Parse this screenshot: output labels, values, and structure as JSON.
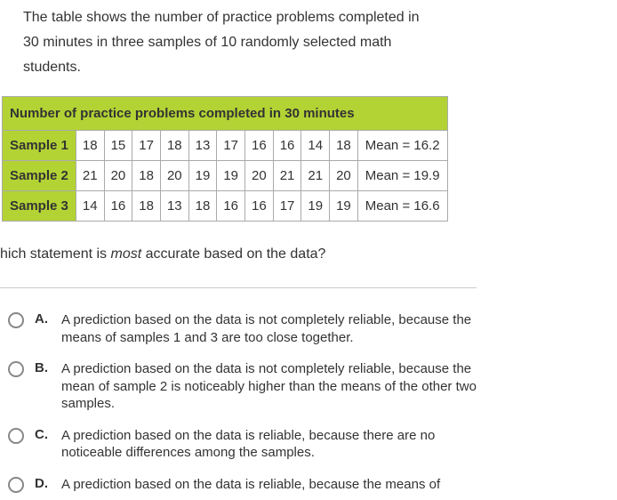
{
  "intro": "The table shows the number of practice problems completed in 30 minutes in three samples of 10 randomly selected math students.",
  "table": {
    "title": "Number of practice problems completed in 30 minutes",
    "title_bg": "#b3d334",
    "label_bg": "#b3d334",
    "border_color": "#aaaaaa",
    "cell_fontsize": 15,
    "rows": [
      {
        "label": "Sample 1",
        "values": [
          18,
          15,
          17,
          18,
          13,
          17,
          16,
          16,
          14,
          18
        ],
        "mean": "Mean = 16.2"
      },
      {
        "label": "Sample 2",
        "values": [
          21,
          20,
          18,
          20,
          19,
          19,
          20,
          21,
          21,
          20
        ],
        "mean": "Mean = 19.9"
      },
      {
        "label": "Sample 3",
        "values": [
          14,
          16,
          18,
          13,
          18,
          16,
          16,
          17,
          19,
          19
        ],
        "mean": "Mean = 16.6"
      }
    ]
  },
  "question_prefix": "hich statement is ",
  "question_emph": "most",
  "question_suffix": " accurate based on the data?",
  "choices": [
    {
      "label": "A.",
      "text": "A prediction based on the data is not completely reliable, because the means of samples 1 and 3 are too close together."
    },
    {
      "label": "B.",
      "text": "A prediction based on the data is not completely reliable, because the mean of sample 2 is noticeably higher than the means of the other two samples."
    },
    {
      "label": "C.",
      "text": "A prediction based on the data is reliable, because there are no noticeable differences among the samples."
    },
    {
      "label": "D.",
      "text": "A prediction based on the data is reliable, because the means of"
    }
  ],
  "colors": {
    "text": "#333333",
    "background": "#ffffff",
    "divider": "#cccccc",
    "radio_border": "#888888"
  }
}
